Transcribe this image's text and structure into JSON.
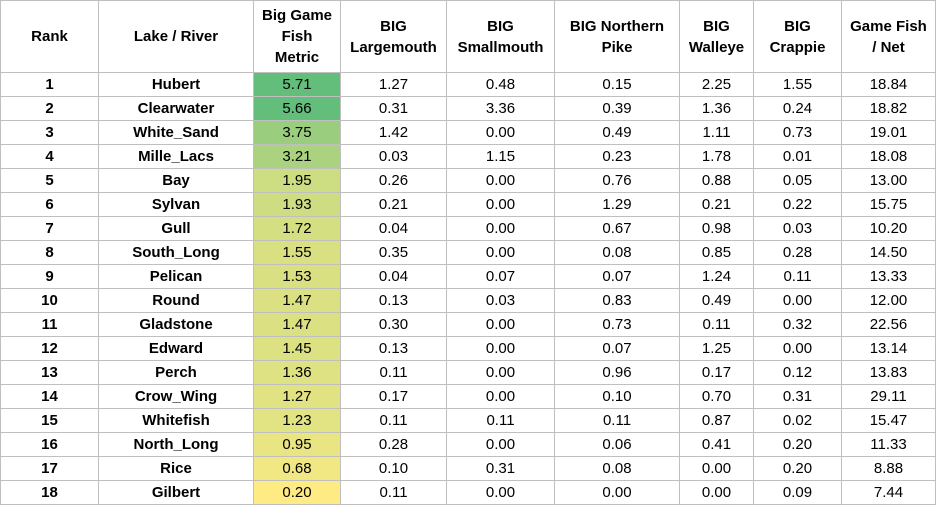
{
  "headers": {
    "rank": [
      "Rank"
    ],
    "lake": [
      "Lake / River"
    ],
    "metric": [
      "Big Game",
      "Fish",
      "Metric"
    ],
    "largemouth": [
      "BIG",
      "Largemouth"
    ],
    "smallmouth": [
      "BIG",
      "Smallmouth"
    ],
    "pike": [
      "BIG Northern",
      "Pike"
    ],
    "walleye": [
      "BIG",
      "Walleye"
    ],
    "crappie": [
      "BIG",
      "Crappie"
    ],
    "net": [
      "Game Fish",
      "/ Net"
    ]
  },
  "rows": [
    {
      "rank": "1",
      "lake": "Hubert",
      "metric": "5.71",
      "largemouth": "1.27",
      "smallmouth": "0.48",
      "pike": "0.15",
      "walleye": "2.25",
      "crappie": "1.55",
      "net": "18.84"
    },
    {
      "rank": "2",
      "lake": "Clearwater",
      "metric": "5.66",
      "largemouth": "0.31",
      "smallmouth": "3.36",
      "pike": "0.39",
      "walleye": "1.36",
      "crappie": "0.24",
      "net": "18.82"
    },
    {
      "rank": "3",
      "lake": "White_Sand",
      "metric": "3.75",
      "largemouth": "1.42",
      "smallmouth": "0.00",
      "pike": "0.49",
      "walleye": "1.11",
      "crappie": "0.73",
      "net": "19.01"
    },
    {
      "rank": "4",
      "lake": "Mille_Lacs",
      "metric": "3.21",
      "largemouth": "0.03",
      "smallmouth": "1.15",
      "pike": "0.23",
      "walleye": "1.78",
      "crappie": "0.01",
      "net": "18.08"
    },
    {
      "rank": "5",
      "lake": "Bay",
      "metric": "1.95",
      "largemouth": "0.26",
      "smallmouth": "0.00",
      "pike": "0.76",
      "walleye": "0.88",
      "crappie": "0.05",
      "net": "13.00"
    },
    {
      "rank": "6",
      "lake": "Sylvan",
      "metric": "1.93",
      "largemouth": "0.21",
      "smallmouth": "0.00",
      "pike": "1.29",
      "walleye": "0.21",
      "crappie": "0.22",
      "net": "15.75"
    },
    {
      "rank": "7",
      "lake": "Gull",
      "metric": "1.72",
      "largemouth": "0.04",
      "smallmouth": "0.00",
      "pike": "0.67",
      "walleye": "0.98",
      "crappie": "0.03",
      "net": "10.20"
    },
    {
      "rank": "8",
      "lake": "South_Long",
      "metric": "1.55",
      "largemouth": "0.35",
      "smallmouth": "0.00",
      "pike": "0.08",
      "walleye": "0.85",
      "crappie": "0.28",
      "net": "14.50"
    },
    {
      "rank": "9",
      "lake": "Pelican",
      "metric": "1.53",
      "largemouth": "0.04",
      "smallmouth": "0.07",
      "pike": "0.07",
      "walleye": "1.24",
      "crappie": "0.11",
      "net": "13.33"
    },
    {
      "rank": "10",
      "lake": "Round",
      "metric": "1.47",
      "largemouth": "0.13",
      "smallmouth": "0.03",
      "pike": "0.83",
      "walleye": "0.49",
      "crappie": "0.00",
      "net": "12.00"
    },
    {
      "rank": "11",
      "lake": "Gladstone",
      "metric": "1.47",
      "largemouth": "0.30",
      "smallmouth": "0.00",
      "pike": "0.73",
      "walleye": "0.11",
      "crappie": "0.32",
      "net": "22.56"
    },
    {
      "rank": "12",
      "lake": "Edward",
      "metric": "1.45",
      "largemouth": "0.13",
      "smallmouth": "0.00",
      "pike": "0.07",
      "walleye": "1.25",
      "crappie": "0.00",
      "net": "13.14"
    },
    {
      "rank": "13",
      "lake": "Perch",
      "metric": "1.36",
      "largemouth": "0.11",
      "smallmouth": "0.00",
      "pike": "0.96",
      "walleye": "0.17",
      "crappie": "0.12",
      "net": "13.83"
    },
    {
      "rank": "14",
      "lake": "Crow_Wing",
      "metric": "1.27",
      "largemouth": "0.17",
      "smallmouth": "0.00",
      "pike": "0.10",
      "walleye": "0.70",
      "crappie": "0.31",
      "net": "29.11"
    },
    {
      "rank": "15",
      "lake": "Whitefish",
      "metric": "1.23",
      "largemouth": "0.11",
      "smallmouth": "0.11",
      "pike": "0.11",
      "walleye": "0.87",
      "crappie": "0.02",
      "net": "15.47"
    },
    {
      "rank": "16",
      "lake": "North_Long",
      "metric": "0.95",
      "largemouth": "0.28",
      "smallmouth": "0.00",
      "pike": "0.06",
      "walleye": "0.41",
      "crappie": "0.20",
      "net": "11.33"
    },
    {
      "rank": "17",
      "lake": "Rice",
      "metric": "0.68",
      "largemouth": "0.10",
      "smallmouth": "0.31",
      "pike": "0.08",
      "walleye": "0.00",
      "crappie": "0.20",
      "net": "8.88"
    },
    {
      "rank": "18",
      "lake": "Gilbert",
      "metric": "0.20",
      "largemouth": "0.11",
      "smallmouth": "0.00",
      "pike": "0.00",
      "walleye": "0.00",
      "crappie": "0.09",
      "net": "7.44"
    }
  ],
  "metric_scale": {
    "min_color": "#ffeb84",
    "max_color": "#63be7b"
  }
}
